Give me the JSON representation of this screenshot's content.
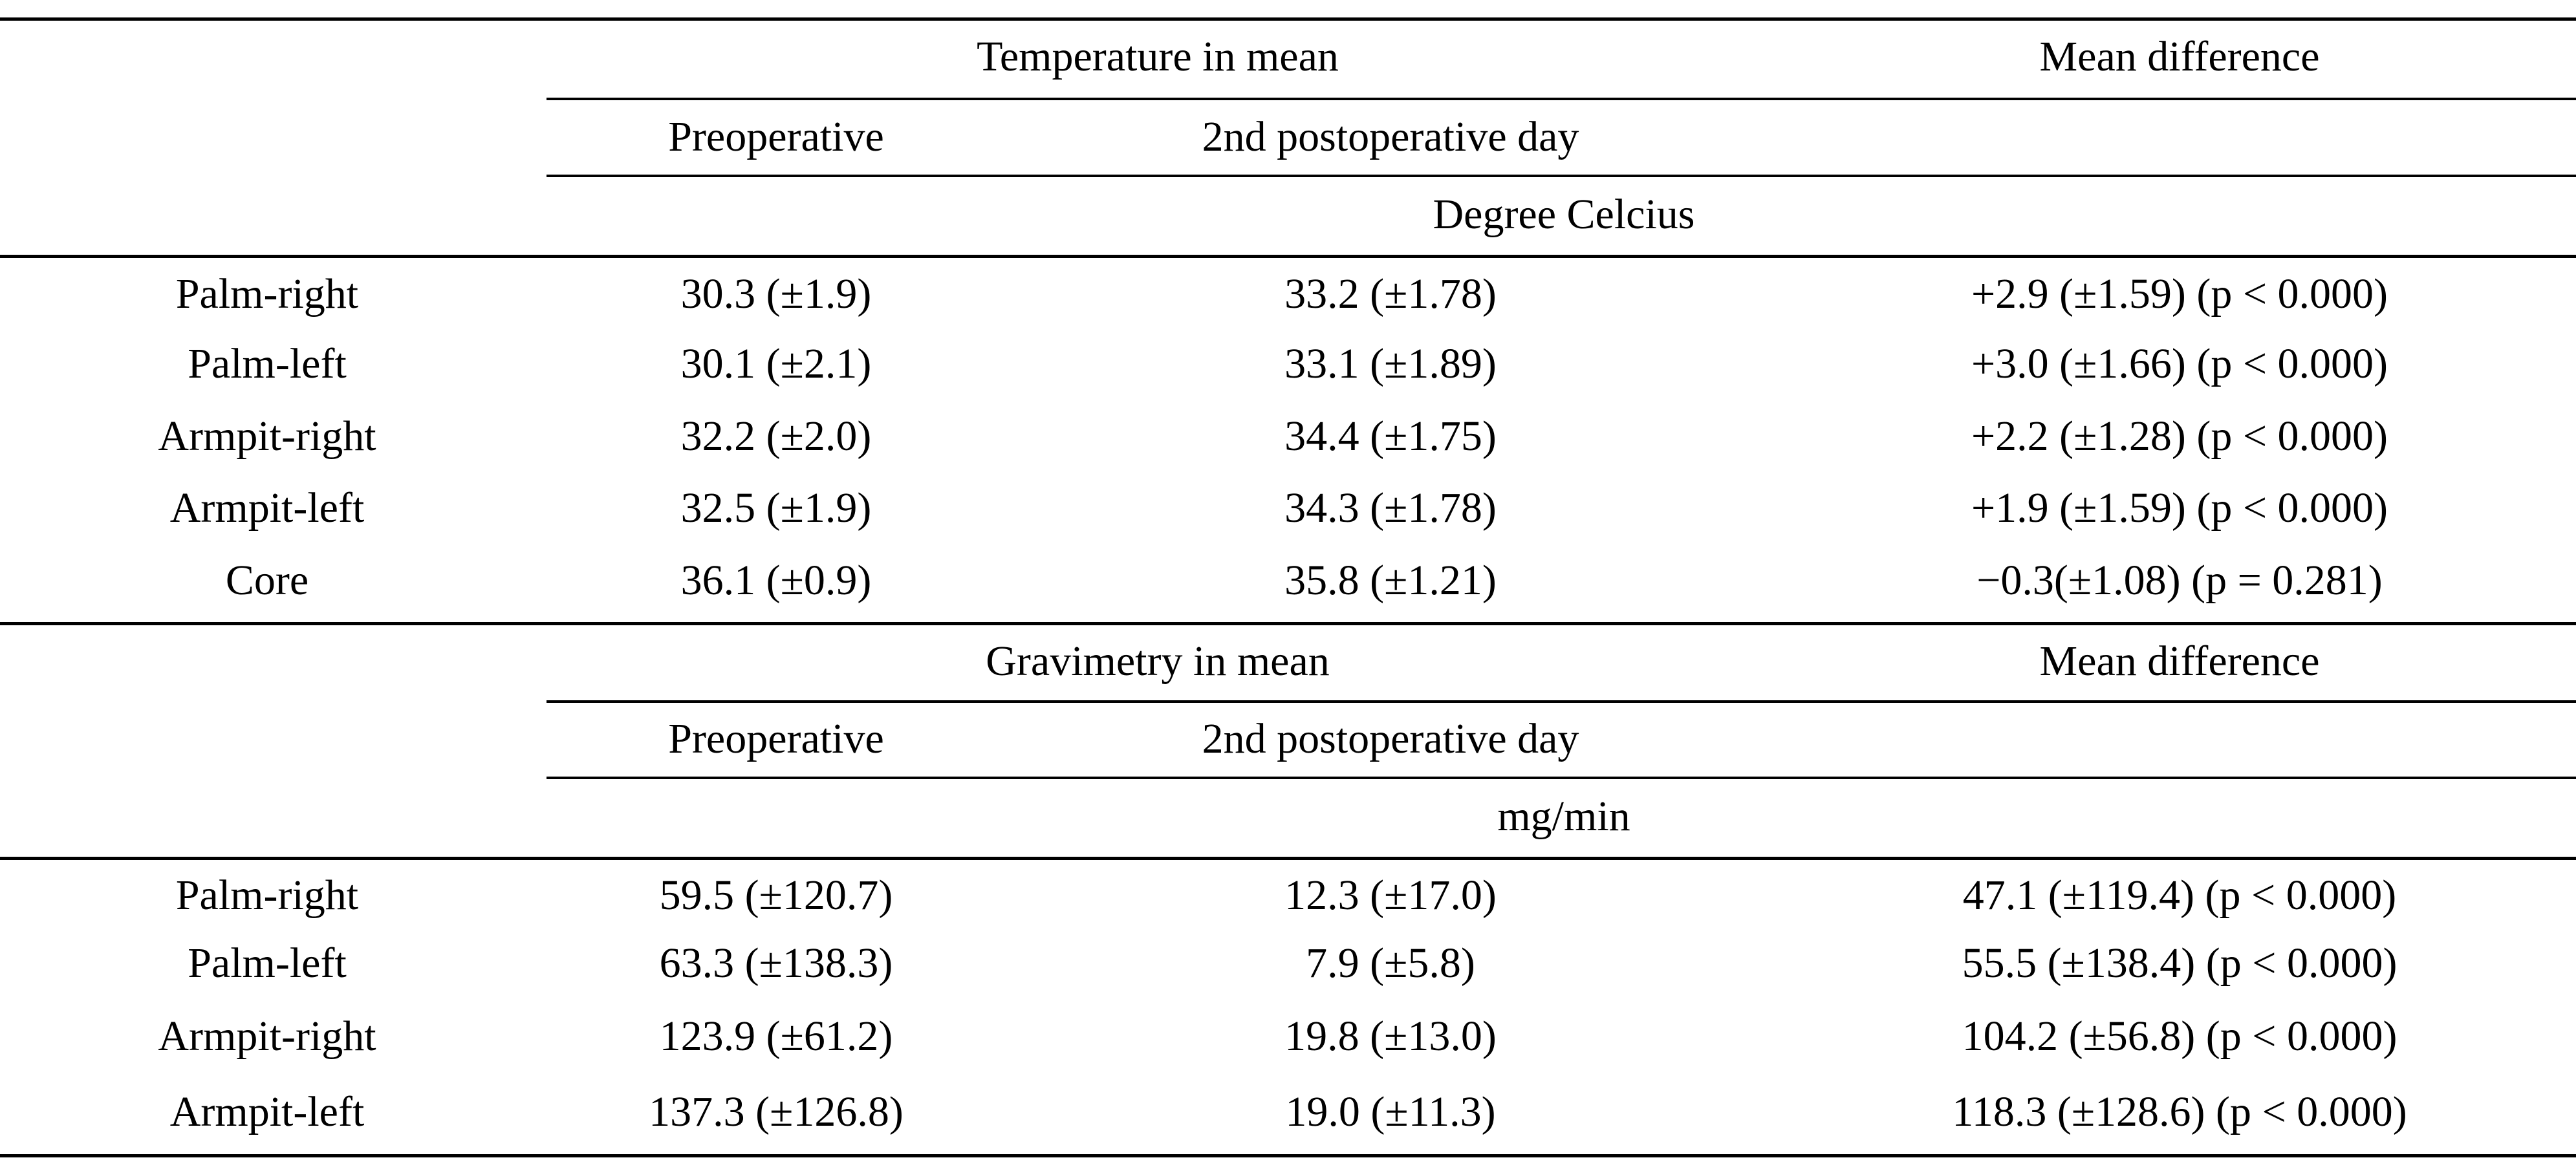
{
  "temperature_section": {
    "group_header": "Temperature in mean",
    "mean_diff_header": "Mean difference",
    "col_preop": "Preoperative",
    "col_postop": "2nd postoperative day",
    "unit": "Degree Celcius",
    "rows": [
      {
        "label": "Palm-right",
        "preop": "30.3 (±1.9)",
        "postop": "33.2 (±1.78)",
        "diff": "+2.9 (±1.59) (p < 0.000)"
      },
      {
        "label": "Palm-left",
        "preop": "30.1 (±2.1)",
        "postop": "33.1 (±1.89)",
        "diff": "+3.0 (±1.66) (p < 0.000)"
      },
      {
        "label": "Armpit-right",
        "preop": "32.2 (±2.0)",
        "postop": "34.4 (±1.75)",
        "diff": "+2.2 (±1.28) (p < 0.000)"
      },
      {
        "label": "Armpit-left",
        "preop": "32.5 (±1.9)",
        "postop": "34.3 (±1.78)",
        "diff": "+1.9 (±1.59) (p < 0.000)"
      },
      {
        "label": "Core",
        "preop": "36.1 (±0.9)",
        "postop": "35.8 (±1.21)",
        "diff": "−0.3(±1.08) (p = 0.281)"
      }
    ]
  },
  "gravimetry_section": {
    "group_header": "Gravimetry in mean",
    "mean_diff_header": "Mean difference",
    "col_preop": "Preoperative",
    "col_postop": "2nd postoperative day",
    "unit": "mg/min",
    "rows": [
      {
        "label": "Palm-right",
        "preop": "59.5 (±120.7)",
        "postop": "12.3 (±17.0)",
        "diff": "47.1 (±119.4) (p < 0.000)"
      },
      {
        "label": "Palm-left",
        "preop": "63.3 (±138.3)",
        "postop": "7.9 (±5.8)",
        "diff": "55.5 (±138.4) (p < 0.000)"
      },
      {
        "label": "Armpit-right",
        "preop": "123.9 (±61.2)",
        "postop": "19.8 (±13.0)",
        "diff": "104.2 (±56.8) (p < 0.000)"
      },
      {
        "label": "Armpit-left",
        "preop": "137.3 (±126.8)",
        "postop": "19.0 (±11.3)",
        "diff": "118.3 (±128.6) (p < 0.000)"
      }
    ]
  }
}
